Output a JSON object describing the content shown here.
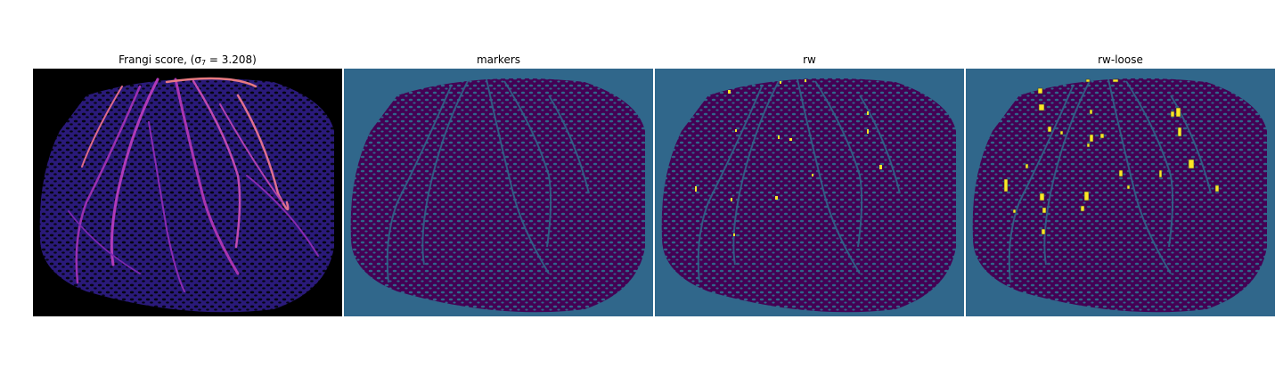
{
  "figure": {
    "panels": [
      {
        "title": "Frangi score, (σ",
        "subscript": "7",
        "title_suffix": " = 3.208)",
        "colormap": "magma",
        "background": "#000000"
      },
      {
        "title": "markers",
        "colormap": "viridis",
        "background": "#30678b",
        "tissue_color": "#440154"
      },
      {
        "title": "rw",
        "colormap": "viridis",
        "background": "#30678b",
        "tissue_color": "#440154",
        "highlight_color": "#fde725"
      },
      {
        "title": "rw-loose",
        "colormap": "viridis",
        "background": "#30678b",
        "tissue_color": "#440154",
        "highlight_color": "#fde725"
      }
    ]
  }
}
